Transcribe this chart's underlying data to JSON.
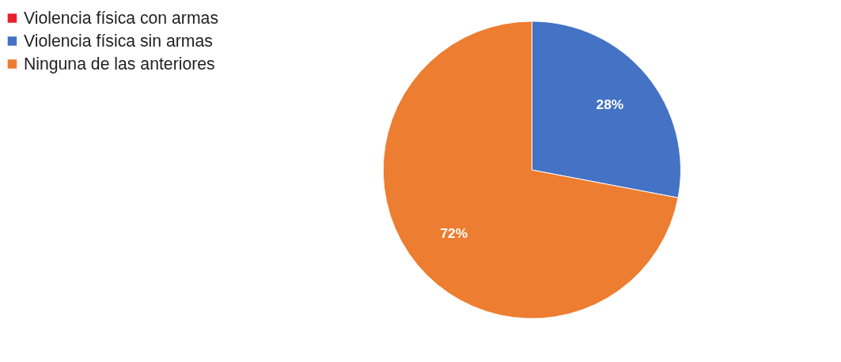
{
  "chart_data": {
    "type": "pie",
    "categories": [
      "Violencia física con armas",
      "Violencia física sin armas",
      "Ninguna de las anteriores"
    ],
    "values": [
      0,
      28,
      72
    ],
    "colors": [
      "#e8202a",
      "#4472c4",
      "#ed7d31"
    ],
    "value_labels": [
      null,
      "28%",
      "72%"
    ],
    "legend": "left"
  }
}
